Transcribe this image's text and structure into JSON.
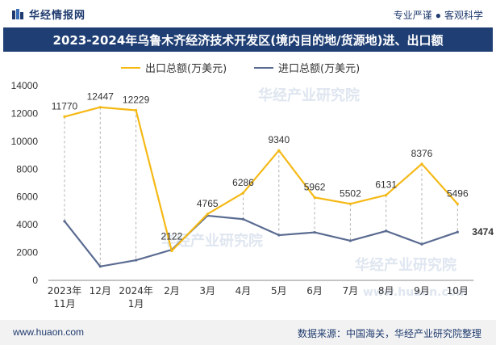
{
  "header": {
    "logo_text": "华经情报网",
    "slogan_left": "专业严谨",
    "slogan_right": "客观科学",
    "title": "2023-2024年乌鲁木齐经济技术开发区(境内目的地/货源地)进、出口额"
  },
  "colors": {
    "export": "#f5b916",
    "import": "#5a6b91",
    "title_bg": "#1f3f74"
  },
  "watermarks": [
    "华经产业研究院",
    "www.huaon.com"
  ],
  "footer": {
    "website": "www.huaon.com",
    "source": "数据来源：中国海关，华经产业研究院整理"
  },
  "chart_data": {
    "type": "line",
    "x": [
      "2023年11月",
      "12月",
      "2024年1月",
      "2月",
      "3月",
      "4月",
      "5月",
      "6月",
      "7月",
      "8月",
      "9月",
      "10月"
    ],
    "x_tick_lines": [
      [
        "2023年",
        "11月"
      ],
      [
        "12月"
      ],
      [
        "2024年",
        "1月"
      ],
      [
        "2月"
      ],
      [
        "3月"
      ],
      [
        "4月"
      ],
      [
        "5月"
      ],
      [
        "6月"
      ],
      [
        "7月"
      ],
      [
        "8月"
      ],
      [
        "9月"
      ],
      [
        "10月"
      ]
    ],
    "series": [
      {
        "name": "出口总额(万美元)",
        "values": [
          11770,
          12447,
          12229,
          2122,
          4765,
          6286,
          9340,
          5962,
          5502,
          6131,
          8376,
          5496
        ],
        "labels": [
          "11770",
          "12447",
          "12229",
          "2122",
          "4765",
          "6286",
          "9340",
          "5962",
          "5502",
          "6131",
          "8376",
          "5496"
        ]
      },
      {
        "name": "进口总额(万美元)",
        "values": [
          4250,
          1000,
          1450,
          2200,
          4650,
          4400,
          3250,
          3450,
          2850,
          3550,
          2600,
          3474
        ],
        "labels": [
          "",
          "",
          "",
          "",
          "",
          "",
          "",
          "",
          "",
          "",
          "",
          "3474"
        ]
      }
    ],
    "ylim": [
      0,
      14000
    ],
    "yticks": [
      0,
      2000,
      4000,
      6000,
      8000,
      10000,
      12000,
      14000
    ],
    "legend": "top",
    "grid": false
  }
}
